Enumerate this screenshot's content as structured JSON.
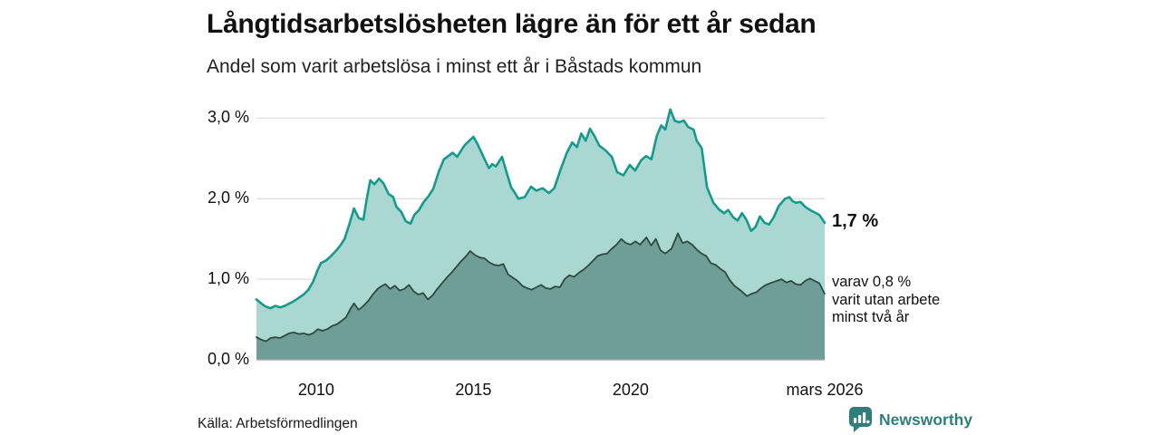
{
  "header": {
    "title": "Långtidsarbetslösheten lägre än för ett år sedan",
    "subtitle": "Andel som varit arbetslösa i minst ett år i Båstads kommun"
  },
  "annotations": {
    "latest_value": "1,7 %",
    "note_lines": [
      "varav 0,8 %",
      "varit utan arbete",
      "minst två år"
    ]
  },
  "footer": {
    "source": "Källa: Arbetsförmedlingen",
    "brand": "Newsworthy"
  },
  "colors": {
    "background": "#ffffff",
    "title": "#111111",
    "subtitle": "#222222",
    "tick_label": "#111111",
    "grid": "#dfdfdf",
    "axis_line": "#a9a9a9",
    "brand_teal": "#2e7f7b"
  },
  "chart_data": {
    "type": "area",
    "title": "Långtidsarbetslösheten lägre än för ett år sedan",
    "subtitle": "Andel som varit arbetslösa i minst ett år i Båstads kommun",
    "unit": "%",
    "grid": "horizontal",
    "xlim": [
      2008.1,
      2026.17
    ],
    "ylim": [
      0,
      3.23
    ],
    "y_ticks": [
      {
        "value": 0.0,
        "label": "0,0 %"
      },
      {
        "value": 1.0,
        "label": "1,0 %"
      },
      {
        "value": 2.0,
        "label": "2,0 %"
      },
      {
        "value": 3.0,
        "label": "3,0 %"
      }
    ],
    "x_ticks": [
      {
        "value": 2010,
        "label": "2010"
      },
      {
        "value": 2015,
        "label": "2015"
      },
      {
        "value": 2020,
        "label": "2020"
      },
      {
        "value": 2026.17,
        "label": "mars 2026"
      }
    ],
    "series": [
      {
        "name": "Andel som varit arbetslösa i minst ett år",
        "latest_label": "1,7 %",
        "line_color": "#169a8b",
        "fill_color": "#aad7d1",
        "line_width": 2.6,
        "points": [
          [
            2008.1,
            0.75
          ],
          [
            2008.25,
            0.7
          ],
          [
            2008.4,
            0.66
          ],
          [
            2008.55,
            0.64
          ],
          [
            2008.7,
            0.67
          ],
          [
            2008.85,
            0.65
          ],
          [
            2009.0,
            0.67
          ],
          [
            2009.15,
            0.7
          ],
          [
            2009.3,
            0.73
          ],
          [
            2009.45,
            0.77
          ],
          [
            2009.6,
            0.81
          ],
          [
            2009.75,
            0.87
          ],
          [
            2009.9,
            0.97
          ],
          [
            2010.05,
            1.12
          ],
          [
            2010.15,
            1.2
          ],
          [
            2010.3,
            1.23
          ],
          [
            2010.45,
            1.28
          ],
          [
            2010.6,
            1.34
          ],
          [
            2010.75,
            1.41
          ],
          [
            2010.9,
            1.5
          ],
          [
            2011.05,
            1.68
          ],
          [
            2011.2,
            1.88
          ],
          [
            2011.35,
            1.76
          ],
          [
            2011.5,
            1.74
          ],
          [
            2011.6,
            1.98
          ],
          [
            2011.72,
            2.23
          ],
          [
            2011.85,
            2.18
          ],
          [
            2012.0,
            2.25
          ],
          [
            2012.14,
            2.19
          ],
          [
            2012.3,
            2.06
          ],
          [
            2012.45,
            2.02
          ],
          [
            2012.55,
            1.9
          ],
          [
            2012.7,
            1.84
          ],
          [
            2012.85,
            1.72
          ],
          [
            2013.0,
            1.69
          ],
          [
            2013.12,
            1.8
          ],
          [
            2013.27,
            1.86
          ],
          [
            2013.42,
            1.96
          ],
          [
            2013.57,
            2.03
          ],
          [
            2013.72,
            2.12
          ],
          [
            2013.9,
            2.34
          ],
          [
            2014.06,
            2.49
          ],
          [
            2014.2,
            2.53
          ],
          [
            2014.34,
            2.57
          ],
          [
            2014.48,
            2.52
          ],
          [
            2014.71,
            2.66
          ],
          [
            2015.0,
            2.77
          ],
          [
            2015.13,
            2.68
          ],
          [
            2015.26,
            2.57
          ],
          [
            2015.49,
            2.38
          ],
          [
            2015.6,
            2.43
          ],
          [
            2015.71,
            2.4
          ],
          [
            2015.91,
            2.52
          ],
          [
            2016.06,
            2.32
          ],
          [
            2016.2,
            2.14
          ],
          [
            2016.34,
            2.06
          ],
          [
            2016.43,
            2.0
          ],
          [
            2016.63,
            2.02
          ],
          [
            2016.83,
            2.15
          ],
          [
            2017.0,
            2.1
          ],
          [
            2017.2,
            2.13
          ],
          [
            2017.4,
            2.07
          ],
          [
            2017.57,
            2.13
          ],
          [
            2017.77,
            2.36
          ],
          [
            2017.97,
            2.57
          ],
          [
            2018.14,
            2.7
          ],
          [
            2018.29,
            2.64
          ],
          [
            2018.43,
            2.81
          ],
          [
            2018.57,
            2.72
          ],
          [
            2018.71,
            2.87
          ],
          [
            2018.86,
            2.77
          ],
          [
            2019.0,
            2.66
          ],
          [
            2019.2,
            2.6
          ],
          [
            2019.4,
            2.52
          ],
          [
            2019.57,
            2.33
          ],
          [
            2019.77,
            2.29
          ],
          [
            2019.97,
            2.42
          ],
          [
            2020.14,
            2.35
          ],
          [
            2020.34,
            2.48
          ],
          [
            2020.49,
            2.53
          ],
          [
            2020.66,
            2.49
          ],
          [
            2020.83,
            2.78
          ],
          [
            2020.97,
            2.91
          ],
          [
            2021.1,
            2.86
          ],
          [
            2021.26,
            3.11
          ],
          [
            2021.4,
            2.97
          ],
          [
            2021.54,
            2.95
          ],
          [
            2021.69,
            2.97
          ],
          [
            2021.83,
            2.89
          ],
          [
            2022.0,
            2.86
          ],
          [
            2022.1,
            2.72
          ],
          [
            2022.26,
            2.63
          ],
          [
            2022.43,
            2.14
          ],
          [
            2022.63,
            1.95
          ],
          [
            2022.8,
            1.87
          ],
          [
            2022.97,
            1.82
          ],
          [
            2023.1,
            1.86
          ],
          [
            2023.26,
            1.77
          ],
          [
            2023.4,
            1.73
          ],
          [
            2023.54,
            1.82
          ],
          [
            2023.68,
            1.74
          ],
          [
            2023.83,
            1.6
          ],
          [
            2023.97,
            1.65
          ],
          [
            2024.11,
            1.78
          ],
          [
            2024.26,
            1.7
          ],
          [
            2024.4,
            1.68
          ],
          [
            2024.55,
            1.77
          ],
          [
            2024.71,
            1.91
          ],
          [
            2024.91,
            2.0
          ],
          [
            2025.05,
            2.02
          ],
          [
            2025.15,
            1.97
          ],
          [
            2025.26,
            1.95
          ],
          [
            2025.4,
            1.96
          ],
          [
            2025.55,
            1.9
          ],
          [
            2025.7,
            1.86
          ],
          [
            2025.85,
            1.83
          ],
          [
            2026.0,
            1.8
          ],
          [
            2026.17,
            1.7
          ]
        ]
      },
      {
        "name": "varav utan arbete minst två år",
        "latest_label": "0,8 %",
        "line_color": "#2b4a45",
        "fill_color": "#6f9d98",
        "line_width": 1.8,
        "points": [
          [
            2008.1,
            0.28
          ],
          [
            2008.25,
            0.25
          ],
          [
            2008.4,
            0.23
          ],
          [
            2008.55,
            0.27
          ],
          [
            2008.7,
            0.28
          ],
          [
            2008.85,
            0.27
          ],
          [
            2009.0,
            0.3
          ],
          [
            2009.15,
            0.33
          ],
          [
            2009.3,
            0.34
          ],
          [
            2009.45,
            0.32
          ],
          [
            2009.6,
            0.33
          ],
          [
            2009.75,
            0.31
          ],
          [
            2009.9,
            0.33
          ],
          [
            2010.05,
            0.38
          ],
          [
            2010.2,
            0.36
          ],
          [
            2010.35,
            0.38
          ],
          [
            2010.5,
            0.42
          ],
          [
            2010.65,
            0.44
          ],
          [
            2010.8,
            0.48
          ],
          [
            2010.95,
            0.53
          ],
          [
            2011.1,
            0.64
          ],
          [
            2011.2,
            0.7
          ],
          [
            2011.35,
            0.62
          ],
          [
            2011.5,
            0.67
          ],
          [
            2011.65,
            0.73
          ],
          [
            2011.8,
            0.81
          ],
          [
            2011.95,
            0.88
          ],
          [
            2012.1,
            0.92
          ],
          [
            2012.2,
            0.94
          ],
          [
            2012.35,
            0.88
          ],
          [
            2012.5,
            0.92
          ],
          [
            2012.65,
            0.86
          ],
          [
            2012.8,
            0.88
          ],
          [
            2012.95,
            0.93
          ],
          [
            2013.1,
            0.85
          ],
          [
            2013.25,
            0.81
          ],
          [
            2013.4,
            0.83
          ],
          [
            2013.55,
            0.75
          ],
          [
            2013.7,
            0.8
          ],
          [
            2013.85,
            0.88
          ],
          [
            2014.0,
            0.95
          ],
          [
            2014.15,
            1.02
          ],
          [
            2014.3,
            1.08
          ],
          [
            2014.45,
            1.15
          ],
          [
            2014.6,
            1.22
          ],
          [
            2014.75,
            1.28
          ],
          [
            2014.9,
            1.35
          ],
          [
            2015.05,
            1.3
          ],
          [
            2015.2,
            1.27
          ],
          [
            2015.35,
            1.26
          ],
          [
            2015.5,
            1.21
          ],
          [
            2015.65,
            1.18
          ],
          [
            2015.8,
            1.17
          ],
          [
            2015.95,
            1.19
          ],
          [
            2016.1,
            1.06
          ],
          [
            2016.25,
            1.02
          ],
          [
            2016.4,
            0.98
          ],
          [
            2016.55,
            0.92
          ],
          [
            2016.7,
            0.89
          ],
          [
            2016.85,
            0.87
          ],
          [
            2017.0,
            0.9
          ],
          [
            2017.15,
            0.93
          ],
          [
            2017.3,
            0.89
          ],
          [
            2017.45,
            0.88
          ],
          [
            2017.6,
            0.91
          ],
          [
            2017.75,
            0.9
          ],
          [
            2017.9,
            1.0
          ],
          [
            2018.05,
            1.05
          ],
          [
            2018.2,
            1.03
          ],
          [
            2018.35,
            1.08
          ],
          [
            2018.5,
            1.12
          ],
          [
            2018.65,
            1.17
          ],
          [
            2018.8,
            1.23
          ],
          [
            2018.95,
            1.29
          ],
          [
            2019.1,
            1.31
          ],
          [
            2019.25,
            1.32
          ],
          [
            2019.4,
            1.38
          ],
          [
            2019.55,
            1.43
          ],
          [
            2019.7,
            1.5
          ],
          [
            2019.85,
            1.45
          ],
          [
            2020.0,
            1.43
          ],
          [
            2020.15,
            1.47
          ],
          [
            2020.3,
            1.43
          ],
          [
            2020.5,
            1.52
          ],
          [
            2020.65,
            1.42
          ],
          [
            2020.8,
            1.5
          ],
          [
            2020.95,
            1.36
          ],
          [
            2021.1,
            1.32
          ],
          [
            2021.3,
            1.38
          ],
          [
            2021.5,
            1.57
          ],
          [
            2021.65,
            1.45
          ],
          [
            2021.8,
            1.47
          ],
          [
            2021.95,
            1.43
          ],
          [
            2022.1,
            1.37
          ],
          [
            2022.25,
            1.32
          ],
          [
            2022.4,
            1.29
          ],
          [
            2022.55,
            1.2
          ],
          [
            2022.7,
            1.18
          ],
          [
            2022.85,
            1.13
          ],
          [
            2023.0,
            1.09
          ],
          [
            2023.15,
            0.99
          ],
          [
            2023.3,
            0.92
          ],
          [
            2023.5,
            0.86
          ],
          [
            2023.7,
            0.79
          ],
          [
            2023.85,
            0.82
          ],
          [
            2024.0,
            0.84
          ],
          [
            2024.15,
            0.89
          ],
          [
            2024.3,
            0.93
          ],
          [
            2024.5,
            0.96
          ],
          [
            2024.65,
            0.98
          ],
          [
            2024.8,
            1.0
          ],
          [
            2024.95,
            0.96
          ],
          [
            2025.1,
            0.98
          ],
          [
            2025.25,
            0.94
          ],
          [
            2025.4,
            0.93
          ],
          [
            2025.55,
            0.98
          ],
          [
            2025.7,
            1.01
          ],
          [
            2025.85,
            0.98
          ],
          [
            2026.0,
            0.95
          ],
          [
            2026.17,
            0.82
          ]
        ]
      }
    ]
  }
}
